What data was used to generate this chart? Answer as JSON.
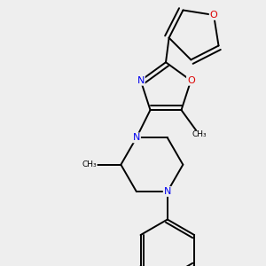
{
  "background_color": "#eeeeee",
  "bond_color": "#000000",
  "N_color": "#0000ee",
  "O_color": "#dd0000",
  "font_size": 8,
  "dbo": 0.05,
  "lw": 1.4,
  "figsize": [
    3.0,
    3.0
  ],
  "dpi": 100,
  "xlim": [
    0.2,
    3.0
  ],
  "ylim": [
    0.1,
    3.1
  ]
}
